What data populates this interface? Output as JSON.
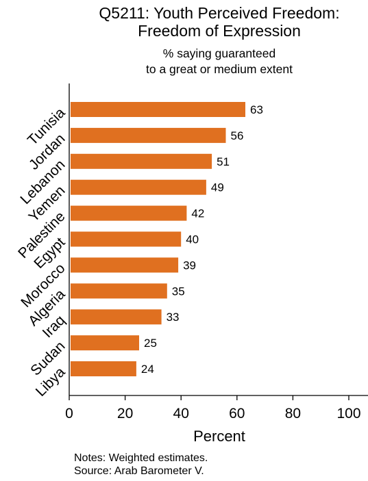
{
  "chart_data": {
    "type": "bar",
    "orientation": "horizontal",
    "title": [
      "Q5211: Youth Perceived Freedom:",
      "Freedom of Expression"
    ],
    "subtitle": [
      "% saying guaranteed",
      "to a great or medium extent"
    ],
    "categories": [
      "Tunisia",
      "Jordan",
      "Lebanon",
      "Yemen",
      "Palestine",
      "Egypt",
      "Morocco",
      "Algeria",
      "Iraq",
      "Sudan",
      "Libya"
    ],
    "values": [
      63,
      56,
      51,
      49,
      42,
      40,
      39,
      35,
      33,
      25,
      24
    ],
    "value_labels": [
      "63",
      "56",
      "51",
      "49",
      "42",
      "40",
      "39",
      "35",
      "33",
      "25",
      "24"
    ],
    "xlabel": "Percent",
    "ylabel": "",
    "xlim": [
      0,
      100
    ],
    "xticks": [
      "0",
      "20",
      "40",
      "60",
      "80",
      "100"
    ],
    "grid": false,
    "legend": "none",
    "bar_color": "#E07020"
  },
  "notes": {
    "line1": "Notes: Weighted estimates.",
    "line2": "Source: Arab Barometer V."
  }
}
